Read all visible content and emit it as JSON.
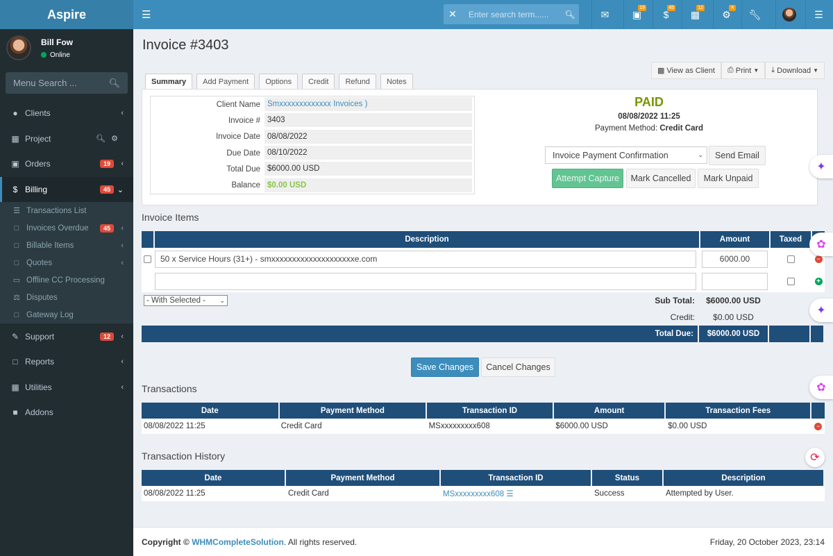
{
  "sidebar": {
    "brand": "Aspire",
    "user": {
      "name": "Bill Fow",
      "status": "Online"
    },
    "menu_search_placeholder": "Menu Search ...",
    "items": [
      {
        "label": "Clients"
      },
      {
        "label": "Project"
      },
      {
        "label": "Orders",
        "badge": "19"
      },
      {
        "label": "Billing",
        "badge": "45"
      },
      {
        "label": "Support",
        "badge": "12"
      },
      {
        "label": "Reports"
      },
      {
        "label": "Utilities"
      },
      {
        "label": "Addons"
      }
    ],
    "billing_sub": [
      {
        "label": "Transactions List"
      },
      {
        "label": "Invoices Overdue",
        "badge": "45"
      },
      {
        "label": "Billable Items"
      },
      {
        "label": "Quotes"
      },
      {
        "label": "Offline CC Processing"
      },
      {
        "label": "Disputes"
      },
      {
        "label": "Gateway Log"
      }
    ]
  },
  "topbar": {
    "search_placeholder": "Enter search term......",
    "badges": {
      "cart": "19",
      "billing": "45",
      "tickets": "12"
    }
  },
  "page": {
    "title": "Invoice #3403",
    "actions": {
      "view_as_client": "View as Client",
      "print": "Print",
      "download": "Download"
    },
    "tabs": [
      "Summary",
      "Add Payment",
      "Options",
      "Credit",
      "Refund",
      "Notes"
    ]
  },
  "summary": {
    "labels": {
      "client_name": "Client Name",
      "invoice_num": "Invoice #",
      "invoice_date": "Invoice Date",
      "due_date": "Due Date",
      "total_due": "Total Due",
      "balance": "Balance"
    },
    "values": {
      "client_name": "Smxxxxxxxxxxxxx Invoices )",
      "invoice_num": "3403",
      "invoice_date": "08/08/2022",
      "due_date": "08/10/2022",
      "total_due": "$6000.00 USD",
      "balance": "$0.00 USD"
    },
    "status": "PAID",
    "paid_date": "08/08/2022 11:25",
    "payment_method_label": "Payment Method:",
    "payment_method": "Credit Card",
    "email_template": "Invoice Payment Confirmation",
    "send_email": "Send Email",
    "attempt_capture": "Attempt Capture",
    "mark_cancelled": "Mark Cancelled",
    "mark_unpaid": "Mark Unpaid"
  },
  "items": {
    "title": "Invoice Items",
    "headers": {
      "description": "Description",
      "amount": "Amount",
      "taxed": "Taxed"
    },
    "rows": [
      {
        "description": "50 x Service Hours (31+) - smxxxxxxxxxxxxxxxxxxxxe.com",
        "amount": "6000.00"
      }
    ],
    "with_selected": "- With Selected -",
    "sub_total_label": "Sub Total:",
    "sub_total": "$6000.00 USD",
    "credit_label": "Credit:",
    "credit": "$0.00 USD",
    "total_due_label": "Total Due:",
    "total_due": "$6000.00 USD",
    "save": "Save Changes",
    "cancel": "Cancel Changes"
  },
  "transactions": {
    "title": "Transactions",
    "headers": [
      "Date",
      "Payment Method",
      "Transaction ID",
      "Amount",
      "Transaction Fees"
    ],
    "rows": [
      {
        "date": "08/08/2022 11:25",
        "method": "Credit Card",
        "id": "MSxxxxxxxxx608",
        "amount": "$6000.00 USD",
        "fees": "$0.00 USD"
      }
    ]
  },
  "history": {
    "title": "Transaction History",
    "headers": [
      "Date",
      "Payment Method",
      "Transaction ID",
      "Status",
      "Description"
    ],
    "rows": [
      {
        "date": "08/08/2022 11:25",
        "method": "Credit Card",
        "id": "MSxxxxxxxxx608",
        "status": "Success",
        "description": "Attempted by User."
      }
    ]
  },
  "footer": {
    "copyright_prefix": "Copyright ©",
    "company": "WHMCompleteSolution",
    "suffix": ". All rights reserved.",
    "datetime": "Friday, 20 October 2023, 23:14"
  },
  "colors": {
    "brand": "#3c8dbc",
    "sidebar": "#222d32",
    "table_header": "#1f4e79",
    "paid": "#779500",
    "danger": "#dd4b39"
  }
}
